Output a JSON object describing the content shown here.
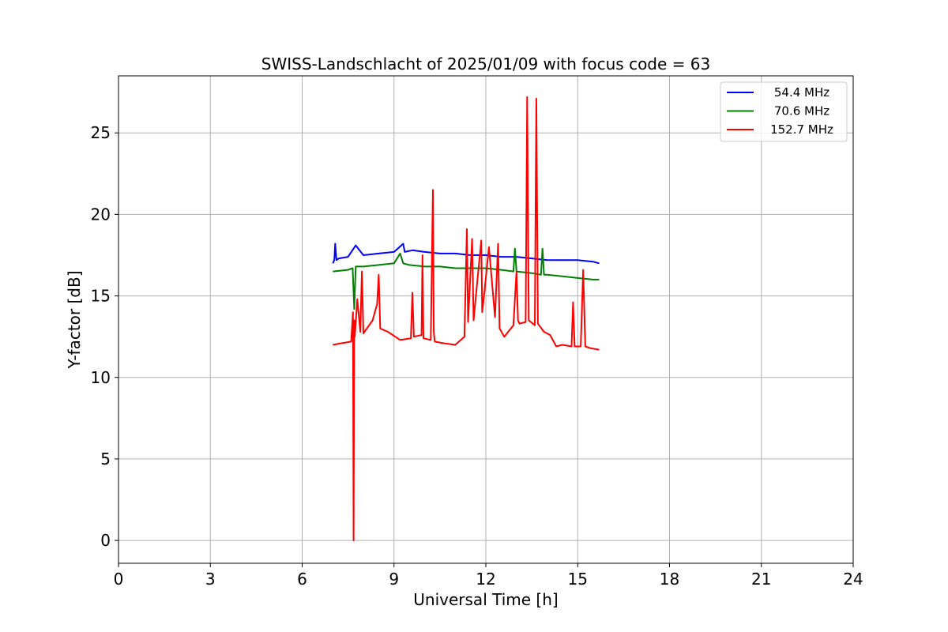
{
  "chart_data": {
    "type": "line",
    "title": "SWISS-Landschlacht of 2025/01/09 with focus code = 63",
    "xlabel": "Universal Time [h]",
    "ylabel": "Y-factor [dB]",
    "xlim": [
      0,
      24
    ],
    "ylim": [
      -1.4,
      28.5
    ],
    "xticks": [
      0,
      3,
      6,
      9,
      12,
      15,
      18,
      21,
      24
    ],
    "yticks": [
      0,
      5,
      10,
      15,
      20,
      25
    ],
    "grid": true,
    "legend_position": "top-right",
    "series": [
      {
        "name": "54.4 MHz",
        "color": "#0000ff",
        "x": [
          7.0,
          7.05,
          7.08,
          7.12,
          7.2,
          7.5,
          7.75,
          8.0,
          8.5,
          9.0,
          9.3,
          9.35,
          9.6,
          10.0,
          10.5,
          11.0,
          11.5,
          12.0,
          12.5,
          13.0,
          13.5,
          14.0,
          14.5,
          15.0,
          15.5,
          15.7
        ],
        "y": [
          17.0,
          17.2,
          18.2,
          17.2,
          17.3,
          17.4,
          18.1,
          17.5,
          17.6,
          17.7,
          18.2,
          17.7,
          17.8,
          17.7,
          17.6,
          17.6,
          17.5,
          17.5,
          17.4,
          17.4,
          17.3,
          17.2,
          17.2,
          17.2,
          17.1,
          17.0
        ]
      },
      {
        "name": "70.6 MHz",
        "color": "#008000",
        "x": [
          7.0,
          7.5,
          7.65,
          7.7,
          7.75,
          8.0,
          8.5,
          9.0,
          9.2,
          9.3,
          9.5,
          10.0,
          10.5,
          11.0,
          11.5,
          12.0,
          12.5,
          12.9,
          12.95,
          13.0,
          13.5,
          13.8,
          13.85,
          13.9,
          14.0,
          14.5,
          15.0,
          15.5,
          15.7
        ],
        "y": [
          16.5,
          16.6,
          16.7,
          14.2,
          16.8,
          16.8,
          16.9,
          17.0,
          17.6,
          17.0,
          16.9,
          16.8,
          16.8,
          16.7,
          16.7,
          16.7,
          16.6,
          16.5,
          17.9,
          16.5,
          16.4,
          16.3,
          17.9,
          16.3,
          16.3,
          16.2,
          16.1,
          16.0,
          16.0
        ]
      },
      {
        "name": "152.7 MHz",
        "color": "#ff0000",
        "x": [
          7.0,
          7.3,
          7.6,
          7.66,
          7.68,
          7.7,
          7.72,
          7.8,
          7.9,
          7.95,
          8.0,
          8.3,
          8.45,
          8.5,
          8.55,
          8.8,
          9.2,
          9.55,
          9.6,
          9.65,
          9.9,
          9.93,
          9.96,
          10.2,
          10.27,
          10.3,
          10.33,
          10.6,
          11.0,
          11.3,
          11.38,
          11.42,
          11.55,
          11.6,
          11.7,
          11.85,
          11.88,
          11.95,
          12.1,
          12.3,
          12.4,
          12.45,
          12.6,
          12.9,
          13.0,
          13.05,
          13.1,
          13.3,
          13.35,
          13.4,
          13.6,
          13.65,
          13.7,
          13.9,
          14.1,
          14.3,
          14.5,
          14.8,
          14.85,
          14.9,
          15.1,
          15.18,
          15.25,
          15.4,
          15.7
        ],
        "y": [
          12.0,
          12.1,
          12.2,
          14.0,
          0.0,
          13.5,
          12.5,
          14.8,
          12.8,
          16.5,
          12.7,
          13.5,
          14.5,
          16.3,
          13.0,
          12.8,
          12.3,
          12.4,
          15.2,
          12.5,
          12.6,
          17.5,
          12.4,
          12.3,
          21.5,
          12.8,
          12.2,
          12.1,
          12.0,
          12.5,
          19.1,
          13.4,
          18.5,
          13.5,
          15.5,
          18.4,
          14.0,
          15.2,
          18.0,
          13.7,
          18.2,
          13.0,
          12.5,
          13.2,
          16.5,
          13.5,
          13.3,
          13.4,
          27.2,
          13.5,
          13.2,
          27.1,
          13.3,
          12.8,
          12.6,
          11.9,
          12.0,
          11.9,
          14.6,
          11.9,
          11.9,
          16.6,
          11.9,
          11.8,
          11.7
        ]
      }
    ]
  }
}
